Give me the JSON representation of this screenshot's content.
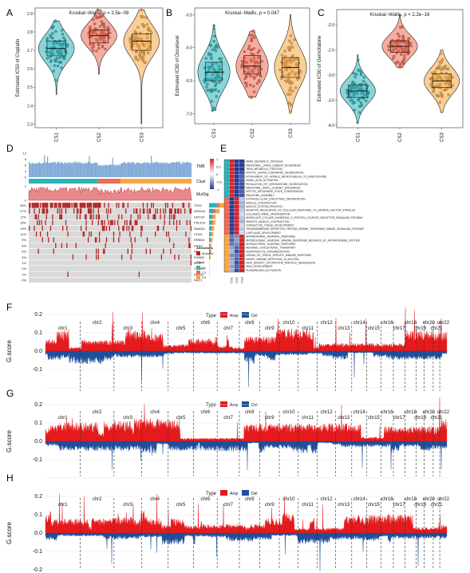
{
  "colors": {
    "c1": "#2AB3B8",
    "c2": "#EE6A50",
    "c3": "#F5A742",
    "amp": "#E41A1C",
    "del": "#1F4E9A",
    "tmb": "#7FA9D6",
    "mut": "#B22222"
  },
  "chart_data": [
    {
      "panel": "A",
      "type": "violin",
      "title": "Kruskal−Wallis, p = 2.5e−08",
      "categories": [
        "CS1",
        "CS2",
        "CS3"
      ],
      "ylabel": "Estimated IC50 of Cisplatin",
      "yticks": [
        2.3,
        2.4,
        2.5,
        2.6,
        2.7,
        2.8,
        2.9
      ],
      "ylim": [
        2.28,
        2.93
      ],
      "medians": [
        2.71,
        2.78,
        2.75
      ],
      "q1": [
        2.67,
        2.74,
        2.7
      ],
      "q3": [
        2.75,
        2.81,
        2.79
      ],
      "ranges": [
        [
          2.46,
          2.86
        ],
        [
          2.57,
          2.92
        ],
        [
          2.3,
          2.92
        ]
      ]
    },
    {
      "panel": "B",
      "type": "violin",
      "title": "Kruskal−Wallis, p = 0.047",
      "categories": [
        "CS1",
        "CS2",
        "CS3"
      ],
      "ylabel": "Estimated IC50 of Docetaxel",
      "yticks": [
        -7.0,
        -6.5,
        -6.0,
        -5.5
      ],
      "ylim": [
        -7.15,
        -5.4
      ],
      "medians": [
        -6.37,
        -6.28,
        -6.3
      ],
      "q1": [
        -6.5,
        -6.4,
        -6.45
      ],
      "q3": [
        -6.22,
        -6.12,
        -6.15
      ],
      "ranges": [
        [
          -6.95,
          -5.65
        ],
        [
          -6.75,
          -5.75
        ],
        [
          -6.98,
          -5.5
        ]
      ]
    },
    {
      "panel": "C",
      "type": "violin",
      "title": "Kruskal−Wallis, p < 2.2e−16",
      "categories": [
        "CS1",
        "CS2",
        "CS3"
      ],
      "ylabel": "Estimated IC50 of Gemcitabine",
      "yticks": [
        -4.0,
        -3.5,
        -3.0,
        -2.5,
        -2.0
      ],
      "ylim": [
        -4.05,
        -1.7
      ],
      "medians": [
        -3.32,
        -2.43,
        -3.12
      ],
      "q1": [
        -3.45,
        -2.55,
        -3.25
      ],
      "q3": [
        -3.2,
        -2.32,
        -2.98
      ],
      "ranges": [
        [
          -3.95,
          -2.6
        ],
        [
          -2.85,
          -1.8
        ],
        [
          -3.75,
          -2.5
        ]
      ]
    },
    {
      "panel": "D",
      "type": "heatmap",
      "track_labels": [
        "TMB",
        "Clust",
        "MutSig"
      ],
      "genes": [
        "TP53",
        "ARID1A",
        "KMT2D",
        "PIK3CA",
        "SMAD4",
        "CDH1",
        "ERBB4",
        "KRAS",
        "NF1",
        "ERBB2",
        "MYC",
        "CCNE1",
        "RHOA",
        "RAC1"
      ],
      "gene_pct": [
        "45%",
        "27%",
        "17%",
        "16%",
        "13%",
        "11%",
        "9%",
        "6%",
        "6%",
        "4%",
        "1%",
        "1%",
        "1%",
        "0%"
      ],
      "ytick_tmb": [
        "0",
        "3",
        "6",
        "9",
        "12"
      ],
      "ytick_mutsig": [
        "0",
        "1"
      ],
      "legend_alterations_title": "Alterations",
      "legend_alterations": [
        "Mutated"
      ],
      "legend_clust_title": "Clust",
      "legend_clust": [
        "C1",
        "C2",
        "C3"
      ]
    },
    {
      "panel": "E",
      "type": "heatmap",
      "columns": [
        "CS1",
        "CS2",
        "CS3"
      ],
      "legend_ticks": [
        "1",
        "0.5",
        "0",
        "-0.5",
        "-1"
      ],
      "pathways": [
        "RRNA_METABOLIC_PROCESS",
        "RIBOSOMAL_LARGE_SUBUNIT_BIOGENESIS",
        "TRNA_METABOLIC_PROCESS",
        "MITOTIC_SISTER_CHROMATID_SEGREGATION",
        "ATTACHMENT_OF_SPINDLE_MICROTUBULES_TO_KINETOCHORE",
        "AMINO_ACID_ACTIVATION",
        "REGULATION_OF_CHROMOSOME_SEGREGATION",
        "RIBOSOMAL_SMALL_SUBUNIT_BIOGENESIS",
        "MITOTIC_METAPHASE_PLATE_CONGRESSION",
        "RIBOSOME_ASSEMBLY",
        "EXTRACELLULAR_STRUCTURE_ORGANIZATION",
        "MUSCLE_CONTRACTION",
        "MUSCLE_SYSTEM_PROCESS",
        "NEGATIVE_REGULATION_OF_CELLULAR_RESPONSE_TO_GROWTH_FACTOR_STIMULUS",
        "COLLAGEN_FIBRIL_ORGANIZATION",
        "ADENYLATE_CYCLASE_INHIBITING_G_PROTEIN_COUPLED_RECEPTOR_SIGNALING_PATHWAY",
        "SMOOTH_MUSCLE_CONTRACTION",
        "CONNECTIVE_TISSUE_DEVELOPMENT",
        "TRANSMEMBRANE_RECEPTOR_PROTEIN_SERINE_THREONINE_KINASE_SIGNALING_PATHWAY",
        "CARTILAGE_DEVELOPMENT",
        "ANTIMICROBIAL_HUMORAL_RESPONSE",
        "ANTIMICROBIAL_HUMORAL_IMMUNE_RESPONSE_MEDIATED_BY_ANTIMICROBIAL_PEPTIDE",
        "ANTIBACTERIAL_HUMORAL_RESPONSE",
        "REVERSE_CHOLESTEROL_TRANSPORT",
        "KERATINOCYTE_DIFFERENTIATION",
        "ORGAN_OR_TISSUE_SPECIFIC_IMMUNE_RESPONSE",
        "INNATE_IMMUNE_RESPONSE_IN_MUCOSA",
        "HIGH_DENSITY_LIPOPROTEIN_PARTICLE_REMODELING",
        "SKIN_DEVELOPMENT",
        "PLASMINOGEN_ACTIVATION"
      ],
      "values": [
        [
          1,
          -1,
          -1
        ],
        [
          1,
          -1,
          -1
        ],
        [
          1,
          -1,
          -1
        ],
        [
          1,
          -1,
          -0.9
        ],
        [
          1,
          -1,
          -0.8
        ],
        [
          1,
          -1,
          -0.8
        ],
        [
          1,
          -1,
          -0.9
        ],
        [
          1,
          -1,
          -0.9
        ],
        [
          1,
          -1,
          -0.8
        ],
        [
          1,
          -1,
          -0.9
        ],
        [
          -1,
          1,
          -0.3
        ],
        [
          -1,
          1,
          -0.4
        ],
        [
          -1,
          1,
          -0.4
        ],
        [
          -1,
          1,
          -0.3
        ],
        [
          -1,
          1,
          -0.2
        ],
        [
          -1,
          1,
          -0.3
        ],
        [
          -1,
          1,
          -0.4
        ],
        [
          -1,
          1,
          -0.2
        ],
        [
          -1,
          1,
          -0.3
        ],
        [
          -1,
          1,
          -0.2
        ],
        [
          -0.7,
          -0.6,
          1
        ],
        [
          -0.8,
          -0.5,
          1
        ],
        [
          -0.7,
          -0.6,
          1
        ],
        [
          -0.5,
          -0.8,
          1
        ],
        [
          -0.4,
          -0.9,
          1
        ],
        [
          -0.6,
          -0.7,
          1
        ],
        [
          -0.5,
          -0.8,
          1
        ],
        [
          -0.4,
          -0.9,
          1
        ],
        [
          -0.5,
          -0.8,
          1
        ],
        [
          -0.4,
          -0.9,
          1
        ]
      ]
    },
    {
      "panel": "F",
      "type": "area",
      "ylabel": "G.score",
      "yticks": [
        "0.2",
        "0.1",
        "0.0",
        "-0.1"
      ],
      "ylim": [
        -0.2,
        0.25
      ],
      "legend_title": "Type",
      "legend": [
        "Amp",
        "Del"
      ],
      "chromosomes": [
        "chr1",
        "chr2",
        "chr3",
        "chr4",
        "chr5",
        "chr6",
        "chr7",
        "chr8",
        "chr9",
        "chr10",
        "chr11",
        "chr12",
        "chr13",
        "chr14",
        "chr15",
        "chr16",
        "chr17",
        "chr18",
        "chr19",
        "chr20",
        "chr21",
        "chr22"
      ]
    },
    {
      "panel": "G",
      "type": "area",
      "ylabel": "G.score",
      "yticks": [
        "0.2",
        "0.1",
        "0.0",
        "-0.1"
      ],
      "ylim": [
        -0.2,
        0.25
      ],
      "legend_title": "Type",
      "legend": [
        "Amp",
        "Del"
      ],
      "chromosomes": [
        "chr1",
        "chr2",
        "chr3",
        "chr4",
        "chr5",
        "chr6",
        "chr7",
        "chr8",
        "chr9",
        "chr10",
        "chr11",
        "chr12",
        "chr13",
        "chr14",
        "chr15",
        "chr16",
        "chr17",
        "chr18",
        "chr19",
        "chr20",
        "chr21",
        "chr22"
      ]
    },
    {
      "panel": "H",
      "type": "area",
      "ylabel": "G.score",
      "yticks": [
        "0.2",
        "0.1",
        "0.0",
        "-0.1",
        "-0.2"
      ],
      "ylim": [
        -0.22,
        0.25
      ],
      "legend_title": "Type",
      "legend": [
        "Amp",
        "Del"
      ],
      "chromosomes": [
        "chr1",
        "chr2",
        "chr3",
        "chr4",
        "chr5",
        "chr6",
        "chr7",
        "chr8",
        "chr9",
        "chr10",
        "chr11",
        "chr12",
        "chr13",
        "chr14",
        "chr15",
        "chr16",
        "chr17",
        "chr18",
        "chr19",
        "chr20",
        "chr21",
        "chr22"
      ]
    }
  ]
}
